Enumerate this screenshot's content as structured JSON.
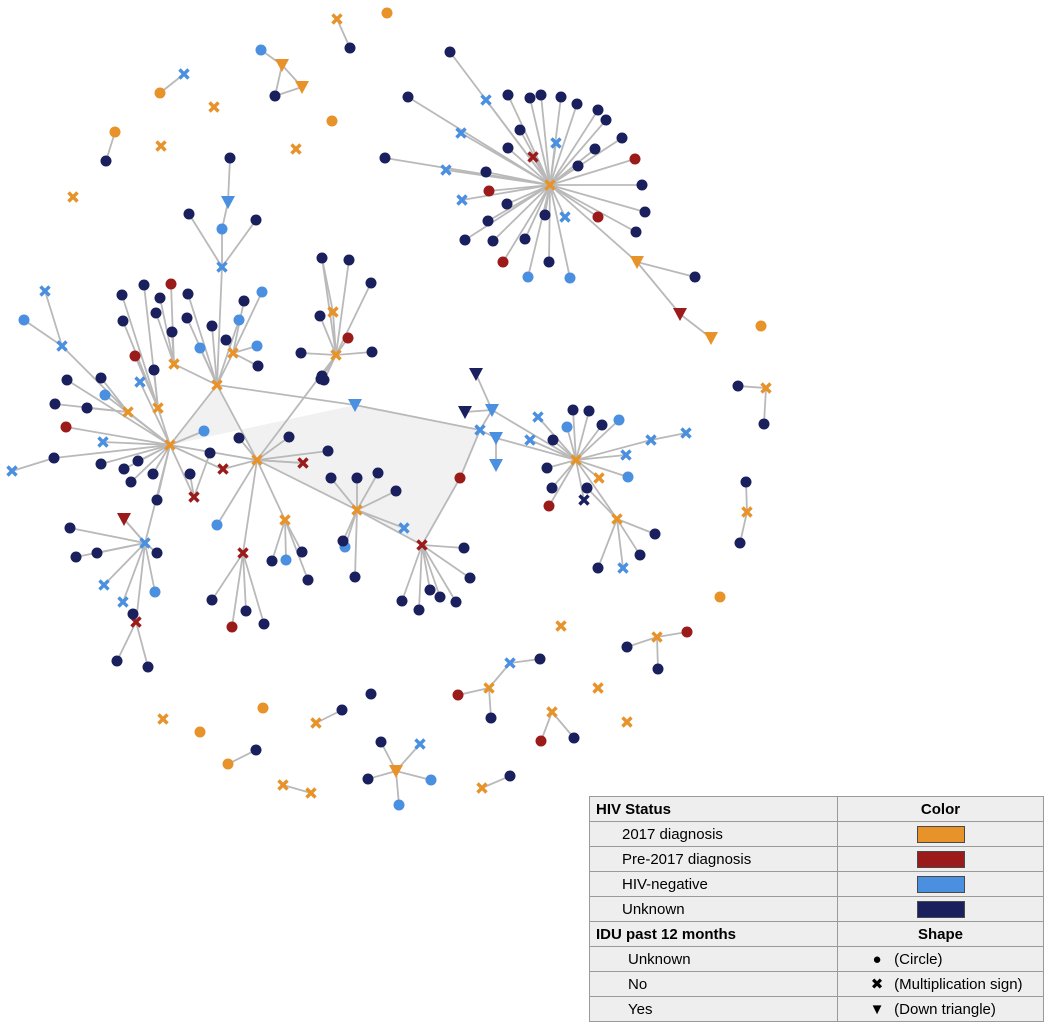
{
  "colors": {
    "diag2017": "#E8922A",
    "pre2017": "#9B1B1B",
    "negative": "#4A8FE0",
    "unknown": "#1A1F5E",
    "edge": "#b9b9b9"
  },
  "legend": {
    "status_header": "HIV Status",
    "color_header": "Color",
    "status_items": [
      {
        "label": "2017 diagnosis",
        "color": "#E8922A"
      },
      {
        "label": "Pre-2017 diagnosis",
        "color": "#9B1B1B"
      },
      {
        "label": "HIV-negative",
        "color": "#4A8FE0"
      },
      {
        "label": "Unknown",
        "color": "#1A1F5E"
      }
    ],
    "idu_header": "IDU past 12 months",
    "shape_header": "Shape",
    "shape_items": [
      {
        "label": "Unknown",
        "icon": "circle-icon",
        "glyph": "●",
        "desc": "(Circle)"
      },
      {
        "label": "No",
        "icon": "multiplication-icon",
        "glyph": "✖",
        "desc": "(Multiplication sign)"
      },
      {
        "label": "Yes",
        "icon": "down-triangle-icon",
        "glyph": "▼",
        "desc": "(Down triangle)"
      }
    ]
  }
}
